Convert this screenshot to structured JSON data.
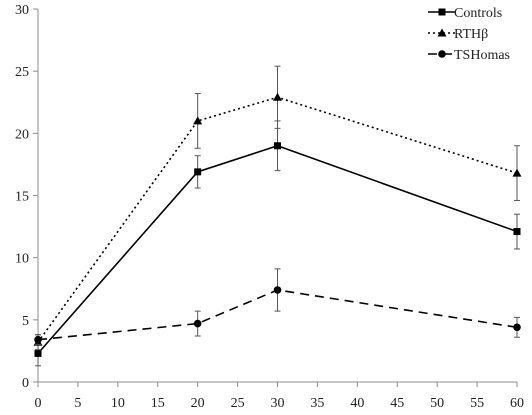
{
  "chart_data": {
    "type": "line",
    "title": "",
    "xlabel": "",
    "ylabel": "",
    "xlim": [
      0,
      60
    ],
    "ylim": [
      0,
      30
    ],
    "x_ticks": [
      0,
      5,
      10,
      15,
      20,
      25,
      30,
      35,
      40,
      45,
      50,
      55,
      60
    ],
    "y_ticks": [
      0,
      5,
      10,
      15,
      20,
      25,
      30
    ],
    "grid": false,
    "legend_position": "top-right",
    "series": [
      {
        "name": "Controls",
        "marker": "square",
        "line_style": "solid",
        "color": "#000000",
        "x": [
          0,
          20,
          30,
          60
        ],
        "y": [
          2.3,
          16.9,
          19.0,
          12.1
        ],
        "error": [
          1.0,
          1.3,
          2.0,
          1.4
        ]
      },
      {
        "name": "RTHβ",
        "marker": "triangle",
        "line_style": "dotted",
        "color": "#000000",
        "x": [
          0,
          20,
          30,
          60
        ],
        "y": [
          3.2,
          21.0,
          22.9,
          16.8
        ],
        "error": [
          0.6,
          2.2,
          2.5,
          2.2
        ]
      },
      {
        "name": "TSHomas",
        "marker": "circle",
        "line_style": "dashed",
        "color": "#000000",
        "x": [
          0,
          20,
          30,
          60
        ],
        "y": [
          3.4,
          4.7,
          7.4,
          4.4
        ],
        "error": [
          0.4,
          1.0,
          1.7,
          0.8
        ]
      }
    ]
  }
}
